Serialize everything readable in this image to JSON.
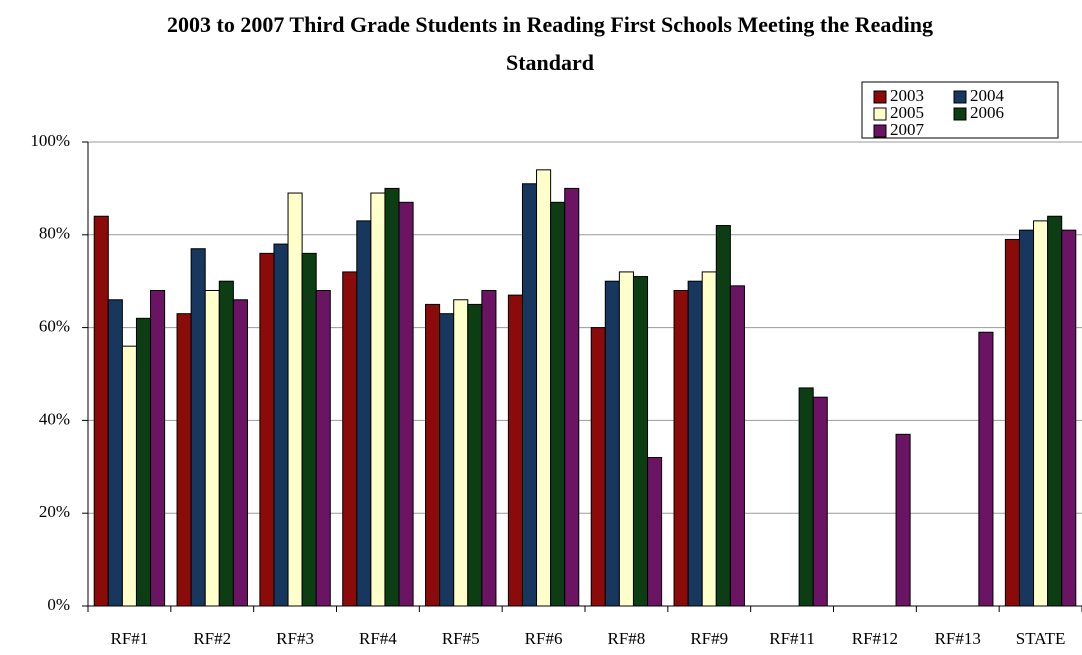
{
  "chart_data": {
    "type": "bar",
    "title": "2003 to 2007 Third Grade Students in Reading First Schools Meeting the Reading Standard",
    "categories": [
      "RF#1",
      "RF#2",
      "RF#3",
      "RF#4",
      "RF#5",
      "RF#6",
      "RF#8",
      "RF#9",
      "RF#11",
      "RF#12",
      "RF#13",
      "STATE"
    ],
    "series": [
      {
        "name": "2003",
        "color": "#8b0a0a",
        "values": [
          84,
          63,
          76,
          72,
          65,
          67,
          60,
          68,
          null,
          null,
          null,
          79
        ]
      },
      {
        "name": "2004",
        "color": "#17375e",
        "values": [
          66,
          77,
          78,
          83,
          63,
          91,
          70,
          70,
          null,
          null,
          null,
          81
        ]
      },
      {
        "name": "2005",
        "color": "#ffffcc",
        "values": [
          56,
          68,
          89,
          89,
          66,
          94,
          72,
          72,
          null,
          null,
          null,
          83
        ]
      },
      {
        "name": "2006",
        "color": "#0d3d12",
        "values": [
          62,
          70,
          76,
          90,
          65,
          87,
          71,
          82,
          47,
          null,
          null,
          84
        ]
      },
      {
        "name": "2007",
        "color": "#6a1463",
        "values": [
          68,
          66,
          68,
          87,
          68,
          90,
          32,
          69,
          45,
          37,
          59,
          81
        ]
      }
    ],
    "ylim": [
      0,
      100
    ],
    "yticks": [
      {
        "value": 0,
        "label": "0%"
      },
      {
        "value": 20,
        "label": "20%"
      },
      {
        "value": 40,
        "label": "40%"
      },
      {
        "value": 60,
        "label": "60%"
      },
      {
        "value": 80,
        "label": "80%"
      },
      {
        "value": 100,
        "label": "100%"
      }
    ],
    "grid": true,
    "legend": "top-right"
  }
}
